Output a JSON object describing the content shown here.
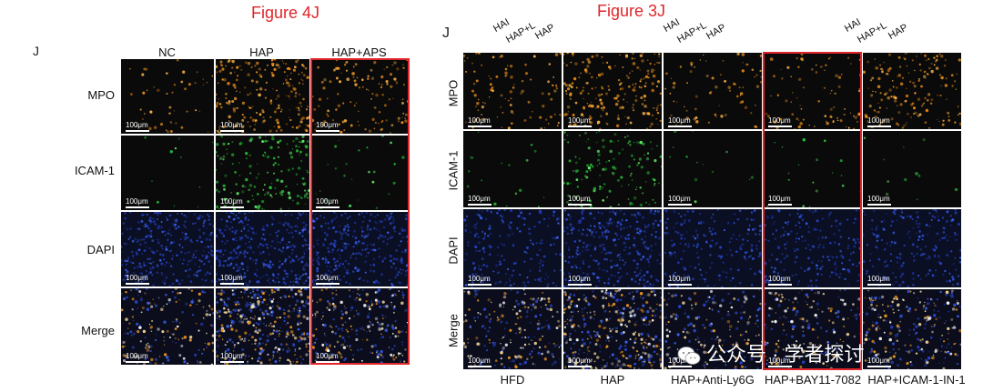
{
  "left_figure": {
    "title": "Figure 4J",
    "panel_letter": "J",
    "columns": [
      "NC",
      "HAP",
      "HAP+APS"
    ],
    "rows": [
      "MPO",
      "ICAM-1",
      "DAPI",
      "Merge"
    ],
    "scale_label": "100μm"
  },
  "right_figure": {
    "title": "Figure 3J",
    "panel_letter": "J",
    "top_fragments": [
      "HAI",
      "HAP+L",
      "HAP",
      "HAI",
      "HAP+L",
      "HAP",
      "HAI",
      "HAP+L",
      "HAP"
    ],
    "columns": [
      "HFD",
      "HAP",
      "HAP+Anti-Ly6G",
      "HAP+BAY11-7082",
      "HAP+ICAM-1-IN-1"
    ],
    "rows": [
      "MPO",
      "ICAM-1",
      "DAPI",
      "Merge"
    ],
    "scale_label": "100μm"
  },
  "watermark": {
    "text": "公众号 · 学者探讨"
  },
  "colors": {
    "highlight": "#e0252b",
    "mpo": "#f0961e",
    "icam": "#2fd62f",
    "dapi": "#2c4fd8"
  }
}
